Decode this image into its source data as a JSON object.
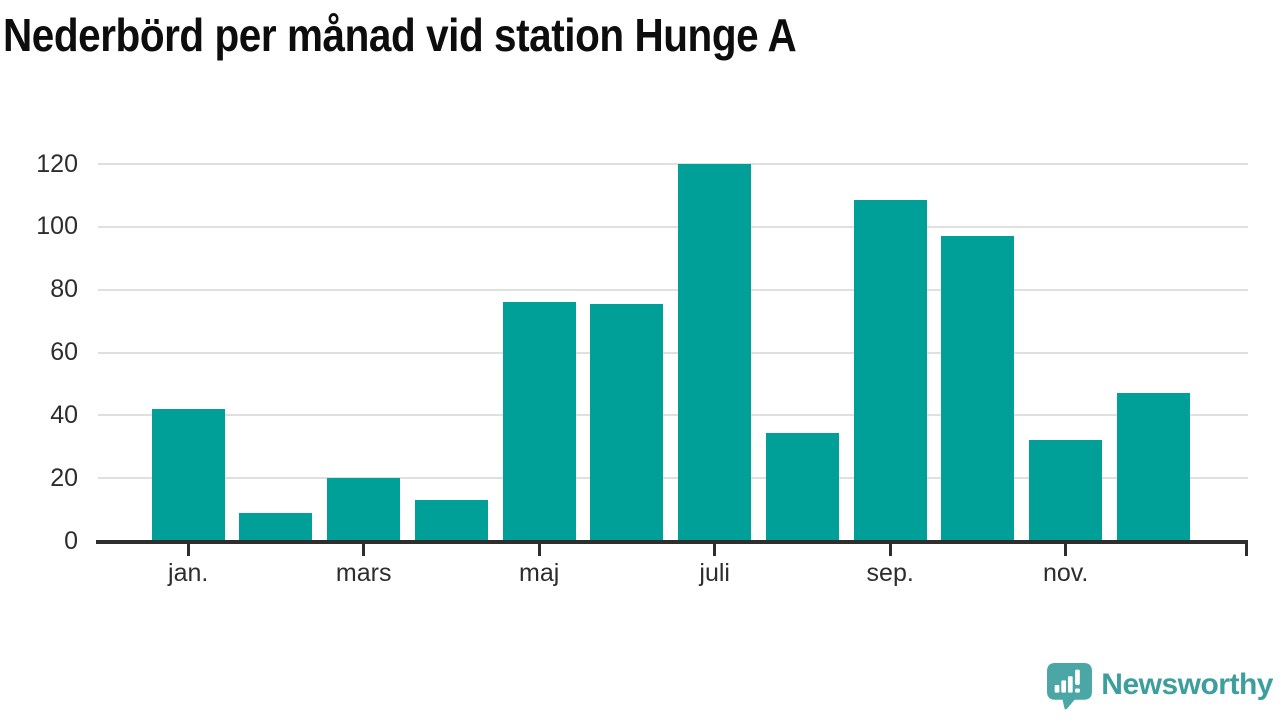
{
  "title": "Nederbörd per månad vid station Hunge A",
  "chart_data": {
    "type": "bar",
    "title": "Nederbörd per månad vid station Hunge A",
    "values": [
      42,
      9,
      20,
      13,
      76,
      75.5,
      120,
      34.5,
      108.5,
      97,
      32,
      47
    ],
    "bar_count": 12,
    "x_ticks": [
      {
        "bar_index": 0,
        "label": "jan."
      },
      {
        "bar_index": 2,
        "label": "mars"
      },
      {
        "bar_index": 4,
        "label": "maj"
      },
      {
        "bar_index": 6,
        "label": "juli"
      },
      {
        "bar_index": 8,
        "label": "sep."
      },
      {
        "bar_index": 10,
        "label": "nov."
      }
    ],
    "y_ticks": [
      0,
      20,
      40,
      60,
      80,
      100,
      120
    ],
    "ylim": [
      0,
      120
    ],
    "xlabel": "",
    "ylabel": "",
    "grid": "horizontal",
    "legend": "none",
    "bar_color": "#00a099"
  },
  "colors": {
    "bar": "#00a099",
    "grid": "#e0e0e0",
    "axis": "#2e2e2e",
    "title": "#0d0d0d",
    "tick_label": "#2d2d2d",
    "brand_text": "#3d9e9e",
    "brand_icon": "#4ba6a6",
    "background": "#ffffff"
  },
  "brand": {
    "label": "Newsworthy",
    "icon": "newsworthy-speech-bubble-barchart-icon"
  }
}
